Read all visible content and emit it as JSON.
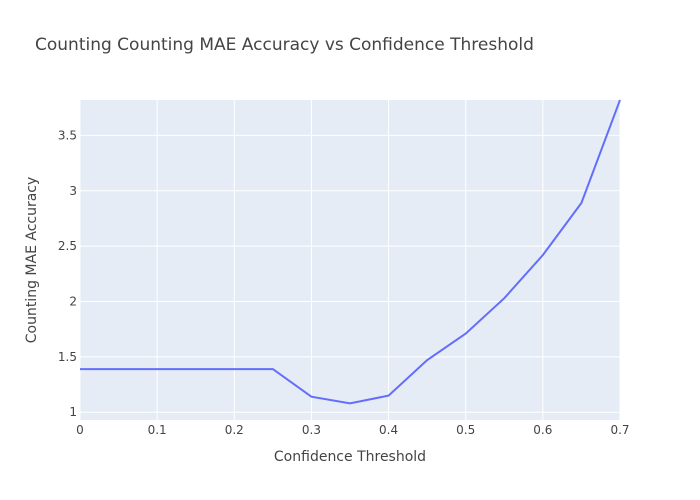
{
  "chart_data": {
    "type": "line",
    "title": "Counting Counting MAE Accuracy vs Confidence Threshold",
    "xlabel": "Confidence Threshold",
    "ylabel": "Counting MAE Accuracy",
    "xlim": [
      0,
      0.7
    ],
    "ylim": [
      0.93,
      3.82
    ],
    "x_ticks": [
      "0",
      "0.1",
      "0.2",
      "0.3",
      "0.4",
      "0.5",
      "0.6",
      "0.7"
    ],
    "y_ticks": [
      "1",
      "1.5",
      "2",
      "2.5",
      "3",
      "3.5"
    ],
    "grid": true,
    "colors": {
      "plot_bg": "#e5ecf6",
      "grid": "#ffffff",
      "line": "#636efa"
    },
    "series": [
      {
        "x": [
          0,
          0.05,
          0.1,
          0.15,
          0.2,
          0.25,
          0.3,
          0.35,
          0.4,
          0.45,
          0.5,
          0.55,
          0.6,
          0.65,
          0.7
        ],
        "y": [
          1.39,
          1.39,
          1.39,
          1.39,
          1.39,
          1.39,
          1.14,
          1.08,
          1.15,
          1.47,
          1.71,
          2.03,
          2.42,
          2.89,
          3.82
        ]
      }
    ]
  }
}
